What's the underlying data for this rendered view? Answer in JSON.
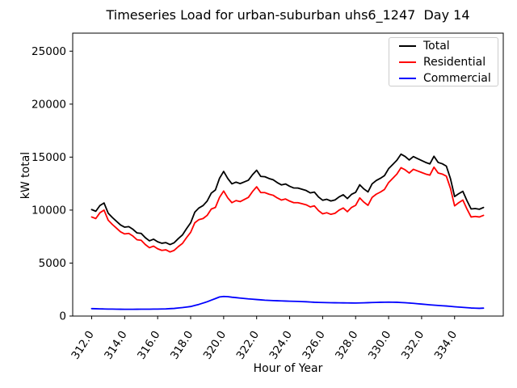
{
  "title": "Timeseries Load for urban-suburban uhs6_1247  Day 14",
  "colors": {
    "total": "#000000",
    "residential": "#ff0000",
    "commercial": "#0000ff",
    "axis": "#000000",
    "legend_border": "#cccccc",
    "background": "#ffffff"
  },
  "chart_data": {
    "type": "line",
    "title": "Timeseries Load for urban-suburban uhs6_1247  Day 14",
    "xlabel": "Hour of Year",
    "ylabel": "kW total",
    "xlim": [
      310.85,
      336.95
    ],
    "ylim": [
      0,
      26700
    ],
    "grid": false,
    "legend_position": "upper right",
    "xticks": [
      312,
      314,
      316,
      318,
      320,
      322,
      324,
      326,
      328,
      330,
      332,
      334
    ],
    "xtick_labels": [
      "312.0",
      "314.0",
      "316.0",
      "318.0",
      "320.0",
      "322.0",
      "324.0",
      "326.0",
      "328.0",
      "330.0",
      "332.0",
      "334.0"
    ],
    "yticks": [
      0,
      5000,
      10000,
      15000,
      20000,
      25000
    ],
    "ytick_labels": [
      "0",
      "5000",
      "10000",
      "15000",
      "20000",
      "25000"
    ],
    "x": [
      312.0,
      312.25,
      312.5,
      312.75,
      313.0,
      313.25,
      313.5,
      313.75,
      314.0,
      314.25,
      314.5,
      314.75,
      315.0,
      315.25,
      315.5,
      315.75,
      316.0,
      316.25,
      316.5,
      316.75,
      317.0,
      317.25,
      317.5,
      317.75,
      318.0,
      318.25,
      318.5,
      318.75,
      319.0,
      319.25,
      319.5,
      319.75,
      320.0,
      320.25,
      320.5,
      320.75,
      321.0,
      321.25,
      321.5,
      321.75,
      322.0,
      322.25,
      322.5,
      322.75,
      323.0,
      323.25,
      323.5,
      323.75,
      324.0,
      324.25,
      324.5,
      324.75,
      325.0,
      325.25,
      325.5,
      325.75,
      326.0,
      326.25,
      326.5,
      326.75,
      327.0,
      327.25,
      327.5,
      327.75,
      328.0,
      328.25,
      328.5,
      328.75,
      329.0,
      329.25,
      329.5,
      329.75,
      330.0,
      330.25,
      330.5,
      330.75,
      331.0,
      331.25,
      331.5,
      331.75,
      332.0,
      332.25,
      332.5,
      332.75,
      333.0,
      333.25,
      333.5,
      333.75,
      334.0,
      334.25,
      334.5,
      334.75,
      335.0,
      335.25,
      335.5,
      335.75
    ],
    "series": [
      {
        "name": "Total",
        "color": "#000000",
        "values": [
          10050,
          9890,
          10430,
          10670,
          9710,
          9305,
          8950,
          8595,
          8390,
          8440,
          8190,
          7845,
          7800,
          7400,
          7100,
          7255,
          7010,
          6870,
          6930,
          6750,
          6920,
          7310,
          7650,
          8250,
          8800,
          9800,
          10200,
          10425,
          10850,
          11600,
          11900,
          13000,
          13650,
          12980,
          12480,
          12640,
          12500,
          12660,
          12820,
          13340,
          13760,
          13180,
          13150,
          12980,
          12860,
          12595,
          12380,
          12465,
          12250,
          12090,
          12080,
          11965,
          11850,
          11625,
          11700,
          11240,
          10930,
          11020,
          10860,
          10955,
          11250,
          11445,
          11090,
          11485,
          11680,
          12390,
          12000,
          11715,
          12480,
          12790,
          13000,
          13255,
          13910,
          14305,
          14700,
          15280,
          15060,
          14730,
          15050,
          14865,
          14680,
          14495,
          14360,
          15080,
          14500,
          14375,
          14150,
          12965,
          11280,
          11550,
          11770,
          10890,
          10110,
          10145,
          10080,
          10250
        ]
      },
      {
        "name": "Residential",
        "color": "#ff0000",
        "values": [
          9350,
          9200,
          9750,
          10000,
          9050,
          8650,
          8300,
          7950,
          7750,
          7800,
          7550,
          7200,
          7150,
          6750,
          6450,
          6600,
          6350,
          6200,
          6250,
          6050,
          6200,
          6550,
          6850,
          7400,
          7900,
          8800,
          9100,
          9200,
          9500,
          10100,
          10250,
          11200,
          11800,
          11150,
          10700,
          10900,
          10800,
          11000,
          11200,
          11750,
          12200,
          11650,
          11650,
          11500,
          11400,
          11150,
          10950,
          11050,
          10850,
          10700,
          10700,
          10600,
          10500,
          10300,
          10400,
          9950,
          9650,
          9750,
          9600,
          9700,
          10000,
          10200,
          9850,
          10250,
          10450,
          11150,
          10750,
          10450,
          11200,
          11500,
          11700,
          11950,
          12600,
          13000,
          13400,
          14000,
          13800,
          13500,
          13850,
          13700,
          13550,
          13400,
          13300,
          14050,
          13500,
          13400,
          13200,
          12050,
          10400,
          10700,
          10950,
          10100,
          9350,
          9400,
          9350,
          9500
        ]
      },
      {
        "name": "Commercial",
        "color": "#0000ff",
        "values": [
          700,
          690,
          680,
          670,
          660,
          655,
          650,
          645,
          640,
          640,
          640,
          645,
          650,
          650,
          650,
          655,
          660,
          670,
          680,
          700,
          720,
          760,
          800,
          850,
          900,
          1000,
          1100,
          1225,
          1350,
          1500,
          1650,
          1800,
          1850,
          1830,
          1780,
          1740,
          1700,
          1660,
          1620,
          1590,
          1560,
          1530,
          1500,
          1480,
          1460,
          1445,
          1430,
          1415,
          1400,
          1390,
          1380,
          1365,
          1350,
          1325,
          1300,
          1290,
          1280,
          1270,
          1260,
          1255,
          1250,
          1245,
          1240,
          1235,
          1230,
          1240,
          1250,
          1265,
          1280,
          1290,
          1300,
          1305,
          1310,
          1305,
          1300,
          1280,
          1260,
          1230,
          1200,
          1165,
          1130,
          1095,
          1060,
          1030,
          1000,
          975,
          950,
          915,
          880,
          850,
          820,
          790,
          760,
          745,
          730,
          750
        ]
      }
    ]
  }
}
